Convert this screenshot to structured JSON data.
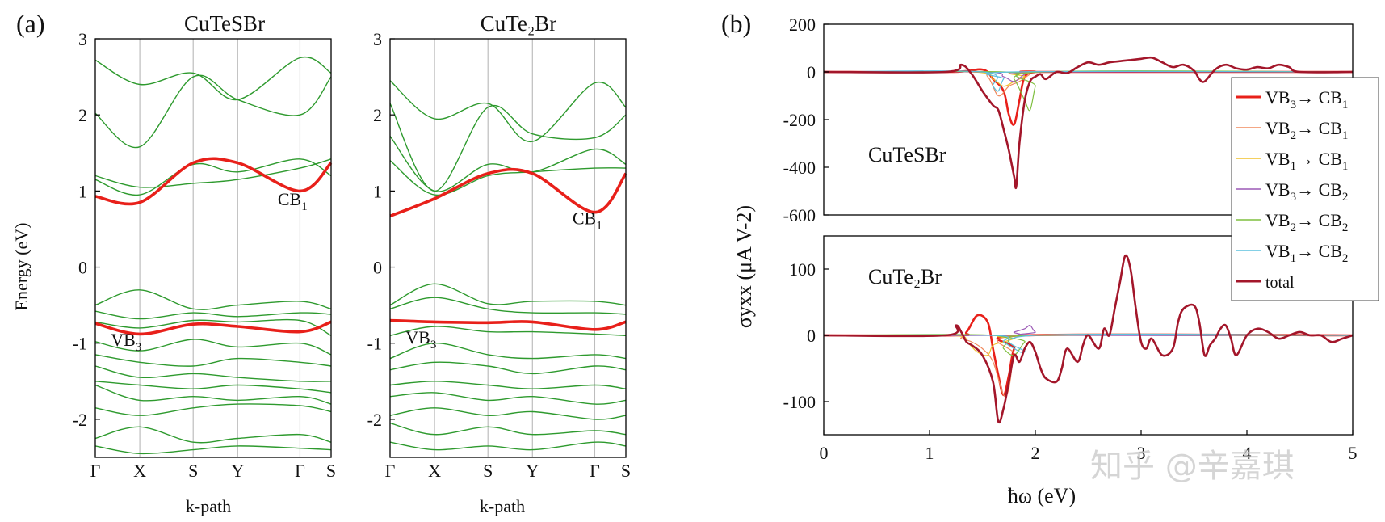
{
  "panel_labels": {
    "a": "(a)",
    "b": "(b)"
  },
  "colors": {
    "band_green": "#2e9a2e",
    "highlight_red": "#e8201a",
    "total_dark_red": "#a3162a",
    "vb2cb1": "#f08a5d",
    "vb1cb1": "#f0c02a",
    "vb3cb2": "#9b59b6",
    "vb2cb2": "#7fbf3f",
    "vb1cb2": "#5bc0de"
  },
  "watermark": "知乎 @辛嘉琪",
  "chart_data": [
    {
      "type": "line",
      "title": "CuTeSBr",
      "ylabel": "Energy (eV)",
      "xlabel": "k-path",
      "ylim": [
        -2.5,
        3
      ],
      "yticks": [
        -2,
        -1,
        0,
        1,
        2,
        3
      ],
      "kpoints": [
        "Γ",
        "X",
        "S",
        "Y",
        "Γ",
        "S"
      ],
      "kpositions": [
        0,
        1,
        2.2,
        3.2,
        4.6,
        5.3
      ],
      "fermi_level": 0,
      "annotations": [
        {
          "text": "CB",
          "sub": "1",
          "x": 4.1,
          "y": 0.9
        },
        {
          "text": "VB",
          "sub": "3",
          "x": 0.35,
          "y": -0.95
        }
      ],
      "highlight_bands": [
        {
          "name": "CB1",
          "y": [
            0.93,
            0.85,
            1.37,
            1.37,
            1.0,
            1.37
          ]
        },
        {
          "name": "VB3",
          "y": [
            -0.74,
            -0.88,
            -0.75,
            -0.78,
            -0.85,
            -0.72
          ]
        }
      ],
      "bands": [
        [
          2.72,
          2.4,
          2.55,
          2.2,
          2.75,
          2.55
        ],
        [
          2.02,
          1.58,
          2.5,
          2.2,
          2.0,
          2.5
        ],
        [
          1.2,
          1.05,
          1.1,
          1.15,
          1.3,
          1.42
        ],
        [
          1.15,
          0.95,
          1.35,
          1.25,
          1.42,
          1.2
        ],
        [
          -0.5,
          -0.3,
          -0.55,
          -0.5,
          -0.45,
          -0.55
        ],
        [
          -0.58,
          -0.68,
          -0.6,
          -0.65,
          -0.6,
          -0.62
        ],
        [
          -0.72,
          -0.8,
          -0.7,
          -0.72,
          -0.7,
          -0.9
        ],
        [
          -0.98,
          -1.1,
          -0.95,
          -1.05,
          -1.0,
          -1.15
        ],
        [
          -1.15,
          -1.25,
          -1.3,
          -1.2,
          -1.25,
          -1.3
        ],
        [
          -1.3,
          -1.45,
          -1.4,
          -1.45,
          -1.5,
          -1.5
        ],
        [
          -1.5,
          -1.55,
          -1.6,
          -1.55,
          -1.6,
          -1.65
        ],
        [
          -1.55,
          -1.75,
          -1.7,
          -1.75,
          -1.7,
          -1.8
        ],
        [
          -1.85,
          -1.95,
          -1.85,
          -1.8,
          -1.82,
          -1.9
        ],
        [
          -2.25,
          -2.1,
          -2.3,
          -2.25,
          -2.2,
          -2.3
        ],
        [
          -2.35,
          -2.45,
          -2.4,
          -2.35,
          -2.38,
          -2.4
        ]
      ]
    },
    {
      "type": "line",
      "title": "CuTe₂Br",
      "xlabel": "k-path",
      "ylim": [
        -2.5,
        3
      ],
      "yticks": [
        -2,
        -1,
        0,
        1,
        2,
        3
      ],
      "kpoints": [
        "Γ",
        "X",
        "S",
        "Y",
        "Γ",
        "S"
      ],
      "kpositions": [
        0,
        1,
        2.2,
        3.2,
        4.6,
        5.3
      ],
      "fermi_level": 0,
      "annotations": [
        {
          "text": "CB",
          "sub": "1",
          "x": 4.1,
          "y": 0.65
        },
        {
          "text": "VB",
          "sub": "3",
          "x": 0.35,
          "y": -0.92
        }
      ],
      "highlight_bands": [
        {
          "name": "CB1",
          "y": [
            0.67,
            0.9,
            1.23,
            1.23,
            0.72,
            1.23
          ]
        },
        {
          "name": "VB3",
          "y": [
            -0.7,
            -0.72,
            -0.73,
            -0.72,
            -0.82,
            -0.72
          ]
        }
      ],
      "bands": [
        [
          2.45,
          1.95,
          2.15,
          1.65,
          2.42,
          2.1
        ],
        [
          2.15,
          1.0,
          2.1,
          1.75,
          1.7,
          2.0
        ],
        [
          1.72,
          1.0,
          1.35,
          1.25,
          1.55,
          1.35
        ],
        [
          1.4,
          0.95,
          1.2,
          1.25,
          1.3,
          1.3
        ],
        [
          -0.5,
          -0.22,
          -0.48,
          -0.45,
          -0.45,
          -0.5
        ],
        [
          -0.55,
          -0.4,
          -0.55,
          -0.6,
          -0.6,
          -0.62
        ],
        [
          -0.9,
          -0.78,
          -0.85,
          -0.85,
          -0.88,
          -0.9
        ],
        [
          -1.2,
          -1.0,
          -1.15,
          -1.2,
          -1.15,
          -1.2
        ],
        [
          -1.35,
          -1.25,
          -1.3,
          -1.4,
          -1.3,
          -1.35
        ],
        [
          -1.55,
          -1.5,
          -1.55,
          -1.6,
          -1.55,
          -1.6
        ],
        [
          -1.7,
          -1.65,
          -1.75,
          -1.7,
          -1.8,
          -1.75
        ],
        [
          -1.95,
          -1.85,
          -1.95,
          -1.9,
          -2.0,
          -1.95
        ],
        [
          -2.05,
          -2.2,
          -2.1,
          -2.2,
          -2.15,
          -2.2
        ],
        [
          -2.3,
          -2.4,
          -2.35,
          -2.4,
          -2.3,
          -2.35
        ]
      ]
    },
    {
      "type": "line",
      "label": "CuTeSBr",
      "ylabel": "σyxx (μA V-2)",
      "ylim": [
        -600,
        200
      ],
      "yticks": [
        -600,
        -400,
        -200,
        0,
        200
      ],
      "xlim": [
        0,
        5
      ],
      "series": [
        {
          "name": "VB3→CB1",
          "x": [
            0,
            1.2,
            1.5,
            1.6,
            1.7,
            1.75,
            1.8,
            1.85,
            1.9,
            2.0,
            2.1,
            5
          ],
          "y": [
            0,
            0,
            10,
            -30,
            -80,
            -180,
            -220,
            -120,
            -20,
            0,
            0,
            0
          ]
        },
        {
          "name": "VB2→CB1",
          "x": [
            0,
            1.4,
            1.55,
            1.65,
            1.75,
            1.85,
            1.95,
            2.0,
            5
          ],
          "y": [
            0,
            0,
            -20,
            -100,
            -60,
            -40,
            -10,
            0,
            0
          ]
        },
        {
          "name": "VB1→CB1",
          "x": [
            0,
            1.4,
            1.6,
            1.7,
            1.8,
            1.9,
            2.0,
            5
          ],
          "y": [
            0,
            0,
            -30,
            -60,
            -40,
            -20,
            0,
            0
          ]
        },
        {
          "name": "VB3→CB2",
          "x": [
            0,
            1.5,
            1.7,
            1.8,
            1.9,
            2.0,
            5
          ],
          "y": [
            0,
            0,
            -20,
            -40,
            -10,
            0,
            0
          ]
        },
        {
          "name": "VB2→CB2",
          "x": [
            0,
            1.7,
            1.8,
            1.9,
            1.95,
            2.0,
            2.05,
            5
          ],
          "y": [
            0,
            0,
            -30,
            -120,
            -160,
            -60,
            0,
            0
          ]
        },
        {
          "name": "VB1→CB2",
          "x": [
            0,
            1.5,
            1.6,
            1.65,
            1.7,
            1.8,
            5
          ],
          "y": [
            0,
            0,
            -60,
            -80,
            -30,
            0,
            0
          ]
        },
        {
          "name": "total",
          "x": [
            0,
            1.15,
            1.3,
            1.4,
            1.5,
            1.6,
            1.65,
            1.7,
            1.75,
            1.8,
            1.82,
            1.85,
            1.9,
            1.95,
            2.0,
            2.05,
            2.1,
            2.2,
            2.3,
            2.4,
            2.5,
            2.6,
            2.7,
            2.8,
            2.9,
            3.0,
            3.1,
            3.2,
            3.3,
            3.4,
            3.5,
            3.55,
            3.6,
            3.7,
            3.8,
            3.9,
            4.0,
            4.1,
            4.2,
            4.3,
            4.4,
            4.5,
            5
          ],
          "y": [
            0,
            0,
            30,
            -10,
            -80,
            -140,
            -160,
            -240,
            -330,
            -440,
            -480,
            -300,
            -120,
            -40,
            -20,
            -10,
            -30,
            0,
            -5,
            20,
            40,
            30,
            40,
            45,
            50,
            55,
            60,
            40,
            20,
            30,
            5,
            -30,
            -40,
            10,
            30,
            15,
            10,
            20,
            15,
            30,
            20,
            0,
            0
          ]
        }
      ]
    },
    {
      "type": "line",
      "label": "CuTe₂Br",
      "xlabel": "ħω (eV)",
      "xlim": [
        0,
        5
      ],
      "xticks": [
        0,
        1,
        2,
        3,
        4,
        5
      ],
      "ylim": [
        -150,
        150
      ],
      "yticks": [
        -100,
        0,
        100
      ],
      "series": [
        {
          "name": "VB3→CB1",
          "x": [
            0,
            1.25,
            1.35,
            1.45,
            1.55,
            1.6,
            1.65,
            1.7,
            1.75,
            1.8,
            1.9,
            5
          ],
          "y": [
            0,
            0,
            5,
            30,
            20,
            -20,
            -60,
            -90,
            -60,
            -20,
            0,
            0
          ]
        },
        {
          "name": "VB2→CB1",
          "x": [
            0,
            1.2,
            1.3,
            1.4,
            1.5,
            1.6,
            1.7,
            1.75,
            1.8,
            1.9,
            5
          ],
          "y": [
            0,
            0,
            -5,
            -10,
            -20,
            -40,
            -90,
            -80,
            -30,
            0,
            0
          ]
        },
        {
          "name": "VB1→CB1",
          "x": [
            0,
            1.2,
            1.35,
            1.45,
            1.55,
            1.6,
            1.7,
            1.8,
            1.9,
            5
          ],
          "y": [
            0,
            0,
            -10,
            -25,
            -30,
            -15,
            -10,
            -5,
            0,
            0
          ]
        },
        {
          "name": "VB3→CB2",
          "x": [
            0,
            1.7,
            1.8,
            1.9,
            1.95,
            2.0,
            2.1,
            5
          ],
          "y": [
            0,
            0,
            5,
            10,
            15,
            5,
            0,
            0
          ]
        },
        {
          "name": "VB2→CB2",
          "x": [
            0,
            1.6,
            1.7,
            1.8,
            1.9,
            2.0,
            5
          ],
          "y": [
            0,
            0,
            -20,
            -30,
            -10,
            0,
            0
          ]
        },
        {
          "name": "VB1→CB2",
          "x": [
            0,
            1.6,
            1.7,
            1.8,
            1.9,
            2.0,
            5
          ],
          "y": [
            0,
            0,
            -10,
            -20,
            -25,
            0,
            0
          ]
        },
        {
          "name": "total",
          "x": [
            0,
            1.15,
            1.25,
            1.3,
            1.35,
            1.4,
            1.5,
            1.6,
            1.65,
            1.7,
            1.75,
            1.8,
            1.85,
            1.9,
            1.95,
            2.0,
            2.05,
            2.1,
            2.2,
            2.25,
            2.3,
            2.4,
            2.45,
            2.5,
            2.6,
            2.65,
            2.7,
            2.75,
            2.8,
            2.85,
            2.9,
            2.95,
            3.0,
            3.05,
            3.1,
            3.2,
            3.3,
            3.35,
            3.4,
            3.5,
            3.55,
            3.6,
            3.65,
            3.7,
            3.75,
            3.8,
            3.85,
            3.9,
            4.0,
            4.1,
            4.2,
            4.3,
            4.4,
            4.5,
            4.6,
            4.7,
            4.8,
            4.9,
            5
          ],
          "y": [
            0,
            0,
            15,
            5,
            -10,
            -15,
            -30,
            -70,
            -130,
            -110,
            -70,
            -30,
            -40,
            -20,
            -10,
            -25,
            -50,
            -65,
            -70,
            -50,
            -20,
            -40,
            -15,
            0,
            -20,
            10,
            0,
            40,
            80,
            120,
            100,
            40,
            -10,
            -20,
            -5,
            -30,
            -20,
            20,
            40,
            45,
            20,
            -30,
            -15,
            -5,
            10,
            15,
            -5,
            -30,
            0,
            10,
            5,
            -5,
            0,
            5,
            0,
            0,
            -10,
            -5,
            0
          ]
        }
      ]
    }
  ]
}
